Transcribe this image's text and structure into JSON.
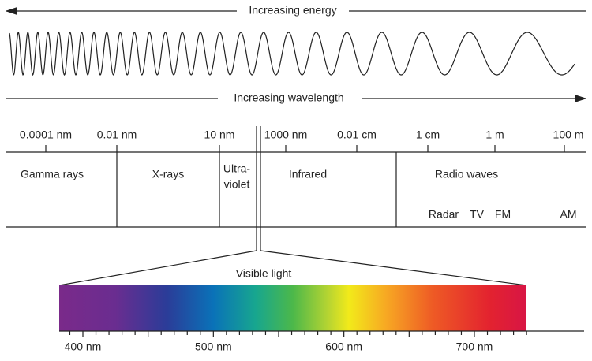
{
  "arrows": {
    "energy": "Increasing energy",
    "wavelength": "Increasing wavelength"
  },
  "scale": [
    "0.0001 nm",
    "0.01 nm",
    "10 nm",
    "1000 nm",
    "0.01 cm",
    "1 cm",
    "1 m",
    "100 m"
  ],
  "regions": {
    "gamma": "Gamma rays",
    "xrays": "X-rays",
    "uv": [
      "Ultra-",
      "violet"
    ],
    "infrared": "Infrared",
    "radio": "Radio waves"
  },
  "radio_bands": [
    "Radar",
    "TV",
    "FM",
    "AM"
  ],
  "visible": {
    "title": "Visible light",
    "ticks": [
      "400 nm",
      "500 nm",
      "600 nm",
      "700 nm"
    ]
  }
}
